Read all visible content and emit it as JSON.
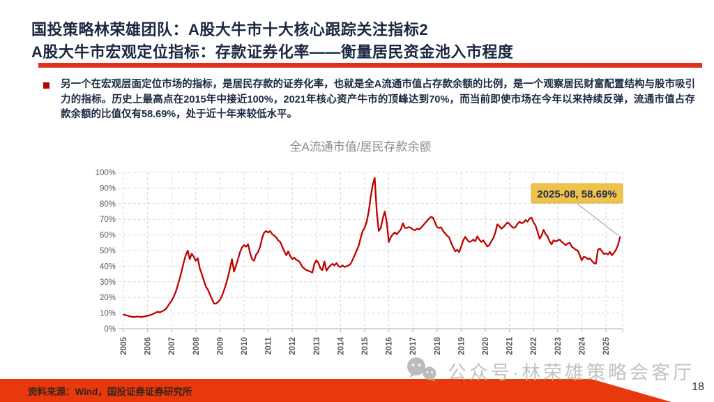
{
  "slide": {
    "title_line1": "国投策略林荣雄团队：A股大牛市十大核心跟踪关注指标2",
    "title_line2": "A股大牛市宏观定位指标：存款证券化率——衡量居民资金池入市程度",
    "bullet_text": "另一个在宏观层面定位市场的指标，是居民存款的证券化率，也就是全A流通市值占存款余额的比例，是一个观察居民财富配置结构与股市吸引力的指标。历史上最高点在2015年中接近100%，2021年核心资产牛市的顶峰达到70%，而当前即使市场在今年以来持续反弹，流通市值占存款余额的比值仅有58.69%，处于近十年来较低水平。",
    "source_text": "资料来源：Wind，国投证券证券研究所",
    "watermark_text": "公众号·林荣雄策略会客厅",
    "watermark_icon": "wechat-icon",
    "page_number": "18",
    "colors": {
      "title_navy": "#1c2742",
      "accent_red": "#e0301e",
      "bullet_red": "#c00000",
      "footer_red": "#e8380d",
      "line_red": "#c00000",
      "callout_bg": "#efc24a",
      "callout_border": "#d8a634",
      "callout_text": "#1f2d4e",
      "grid_gray": "#d9d9d9",
      "axis_gray": "#bfbfbf",
      "tick_label_gray": "#595959",
      "chart_title_gray": "#8c8c8c",
      "watermark_gray": "#bdbdbd",
      "leader_gray": "#b0b0b0"
    }
  },
  "chart_data": {
    "type": "line",
    "title": "全A流通市值/居民存款余额",
    "xlabel": "",
    "ylabel": "",
    "ylim": [
      0,
      100
    ],
    "grid": "dashed both axes",
    "legend": "none",
    "x_tick_labels": [
      "2005",
      "2006",
      "2007",
      "2008",
      "2009",
      "2010",
      "2011",
      "2012",
      "2013",
      "2014",
      "2015",
      "2016",
      "2017",
      "2018",
      "2019",
      "2020",
      "2021",
      "2022",
      "2023",
      "2024",
      "2025"
    ],
    "y_tick_labels": [
      "0%",
      "10%",
      "20%",
      "30%",
      "40%",
      "50%",
      "60%",
      "70%",
      "80%",
      "90%",
      "100%"
    ],
    "series": [
      {
        "name": "全A流通市值/居民存款余额",
        "color": "#c00000",
        "start": "2005-01",
        "end": "2025-08",
        "frequency": "monthly",
        "values_pct": [
          9,
          8.7,
          8.4,
          8,
          7.7,
          7.5,
          7.6,
          7.8,
          7.6,
          7.5,
          7.7,
          8,
          8.3,
          8.6,
          9,
          9.6,
          10.3,
          10.8,
          10.5,
          11,
          11.6,
          12.6,
          14.2,
          16.2,
          18,
          20.5,
          23.5,
          27.5,
          32,
          37,
          42.5,
          47,
          50,
          44.5,
          48,
          46,
          43.5,
          45,
          38.5,
          35,
          31,
          27,
          25,
          22,
          19,
          16.2,
          16,
          17,
          18.5,
          21,
          24.5,
          28.5,
          33,
          38.5,
          44.5,
          36.5,
          40.5,
          44.5,
          49,
          52,
          53.5,
          52.5,
          54,
          48.5,
          44.5,
          43.5,
          47.5,
          49,
          52.5,
          58,
          61.5,
          62.5,
          61.5,
          62.5,
          60.5,
          59.5,
          58.5,
          56.5,
          55.5,
          52.5,
          49.5,
          47,
          49.5,
          46.5,
          44.5,
          45.5,
          44,
          43.5,
          42,
          39.5,
          38.5,
          37.5,
          37,
          36.5,
          36,
          41.5,
          43.8,
          42,
          38.5,
          37.5,
          43,
          37.2,
          39,
          40.5,
          41.5,
          40.5,
          42,
          40,
          39.5,
          40.5,
          39.5,
          40,
          40.5,
          41.5,
          44,
          47,
          50,
          53,
          58,
          62.5,
          64.5,
          68.5,
          75,
          84,
          92,
          96.5,
          75,
          62.5,
          64.5,
          70.5,
          75,
          68,
          55.5,
          58.5,
          60.5,
          61.5,
          60.5,
          62,
          63.5,
          67.5,
          64.5,
          64.5,
          65,
          64.5,
          63.5,
          63,
          64,
          63.5,
          64.5,
          66,
          67.5,
          69,
          70.5,
          71.5,
          71,
          68,
          65,
          64.5,
          64.8,
          62.5,
          61,
          59.5,
          58.5,
          55,
          52,
          49.5,
          50.5,
          49,
          52.5,
          56.5,
          58.8,
          57,
          55.5,
          56,
          57,
          56,
          59,
          57,
          55.5,
          56.5,
          54.5,
          52.6,
          53.5,
          56,
          58,
          61.5,
          66.8,
          65.5,
          64,
          65,
          66.5,
          68,
          67,
          65.5,
          64.5,
          65,
          67,
          68.5,
          67.5,
          68,
          69.5,
          68.5,
          70.5,
          71,
          68,
          66,
          62,
          57.5,
          59.5,
          63.3,
          60.5,
          59,
          55.8,
          54,
          56.6,
          55.8,
          56.5,
          57,
          55.5,
          54.5,
          53.5,
          54.5,
          55,
          52.5,
          51.5,
          50.5,
          50,
          47,
          43.8,
          46,
          45.6,
          44.5,
          45,
          43.5,
          42,
          41.6,
          50.4,
          51.3,
          49.5,
          47.8,
          48.2,
          47.5,
          49.1,
          47,
          48.5,
          50.5,
          53.5,
          58.69
        ]
      }
    ],
    "annotation": {
      "label": "2025-08, 58.69%",
      "points_to": {
        "x": "2025-08",
        "y_pct": 58.69
      }
    }
  }
}
